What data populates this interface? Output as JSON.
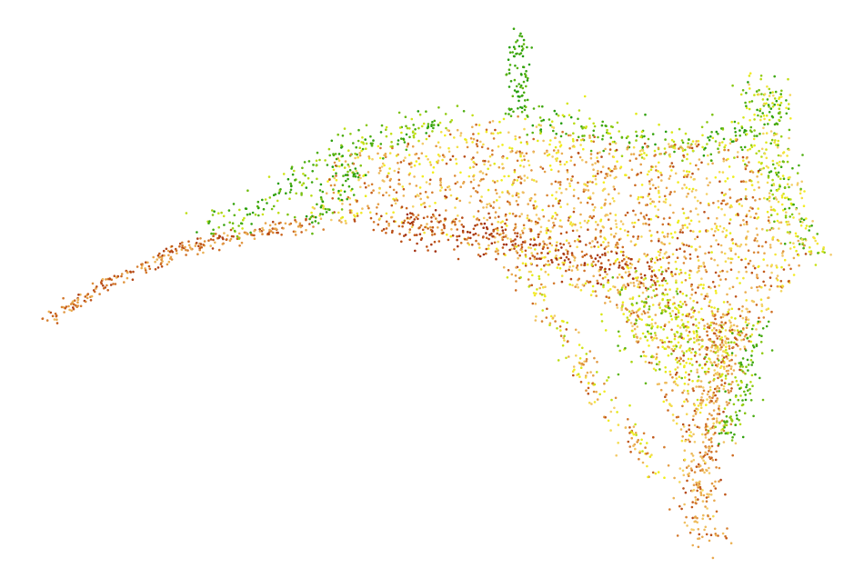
{
  "chart_data": {
    "type": "scatter",
    "title": "",
    "xlabel": "",
    "ylabel": "",
    "axes_visible": false,
    "grid": false,
    "legend": "none",
    "xlim": [
      0,
      1
    ],
    "ylim": [
      0,
      1
    ],
    "colormap": [
      "#9c2a12",
      "#c8611c",
      "#e8a64c",
      "#f4cf6e",
      "#f3f01a",
      "#b9dc14",
      "#4cad10",
      "#1f9a0c"
    ],
    "color_value_range": [
      0,
      1
    ],
    "point_groups": [
      {
        "name": "tail",
        "polyline": [
          [
            0.055,
            0.448
          ],
          [
            0.13,
            0.515
          ],
          [
            0.22,
            0.575
          ],
          [
            0.3,
            0.6
          ],
          [
            0.36,
            0.61
          ]
        ],
        "spread": 0.006,
        "color_range": [
          0.05,
          0.35
        ],
        "count": 260
      },
      {
        "name": "upper-left-edge",
        "polyline": [
          [
            0.245,
            0.605
          ],
          [
            0.33,
            0.66
          ],
          [
            0.39,
            0.74
          ],
          [
            0.46,
            0.765
          ],
          [
            0.53,
            0.8
          ]
        ],
        "spread": 0.014,
        "color_range": [
          0.65,
          0.98
        ],
        "count": 220
      },
      {
        "name": "top-spike",
        "polyline": [
          [
            0.6,
            0.8
          ],
          [
            0.602,
            0.88
          ],
          [
            0.6,
            0.94
          ]
        ],
        "spread": 0.007,
        "color_range": [
          0.82,
          1.0
        ],
        "count": 80
      },
      {
        "name": "upper-right-edge",
        "polyline": [
          [
            0.62,
            0.8
          ],
          [
            0.72,
            0.76
          ],
          [
            0.8,
            0.75
          ],
          [
            0.86,
            0.76
          ],
          [
            0.89,
            0.86
          ]
        ],
        "spread": 0.016,
        "color_range": [
          0.6,
          1.0
        ],
        "count": 240
      },
      {
        "name": "right-edge",
        "polyline": [
          [
            0.885,
            0.85
          ],
          [
            0.895,
            0.7
          ],
          [
            0.915,
            0.62
          ],
          [
            0.945,
            0.56
          ]
        ],
        "spread": 0.014,
        "color_range": [
          0.4,
          0.95
        ],
        "count": 260
      },
      {
        "name": "main-body",
        "polygon": [
          [
            0.35,
            0.62
          ],
          [
            0.39,
            0.73
          ],
          [
            0.53,
            0.78
          ],
          [
            0.6,
            0.8
          ],
          [
            0.72,
            0.75
          ],
          [
            0.86,
            0.76
          ],
          [
            0.9,
            0.64
          ],
          [
            0.94,
            0.56
          ],
          [
            0.88,
            0.43
          ],
          [
            0.82,
            0.3
          ],
          [
            0.8,
            0.2
          ],
          [
            0.72,
            0.46
          ],
          [
            0.6,
            0.55
          ],
          [
            0.52,
            0.58
          ],
          [
            0.42,
            0.61
          ]
        ],
        "color_range": [
          0.08,
          0.62
        ],
        "count": 2000
      },
      {
        "name": "dark-band",
        "polyline": [
          [
            0.44,
            0.61
          ],
          [
            0.52,
            0.6
          ],
          [
            0.6,
            0.575
          ],
          [
            0.7,
            0.55
          ],
          [
            0.77,
            0.53
          ]
        ],
        "spread": 0.018,
        "color_range": [
          0.0,
          0.18
        ],
        "count": 280
      },
      {
        "name": "right-inner-green",
        "polyline": [
          [
            0.74,
            0.5
          ],
          [
            0.79,
            0.43
          ],
          [
            0.82,
            0.35
          ]
        ],
        "spread": 0.03,
        "color_range": [
          0.55,
          0.85
        ],
        "count": 240
      },
      {
        "name": "bottom-spike",
        "polyline": [
          [
            0.84,
            0.46
          ],
          [
            0.83,
            0.33
          ],
          [
            0.815,
            0.2
          ],
          [
            0.81,
            0.1
          ],
          [
            0.822,
            0.06
          ]
        ],
        "spread": 0.013,
        "color_range": [
          0.08,
          0.48
        ],
        "count": 360
      },
      {
        "name": "bottom-spike-green",
        "polyline": [
          [
            0.88,
            0.44
          ],
          [
            0.86,
            0.33
          ],
          [
            0.84,
            0.24
          ]
        ],
        "spread": 0.01,
        "color_range": [
          0.7,
          0.95
        ],
        "count": 110
      },
      {
        "name": "lower-branch",
        "polyline": [
          [
            0.6,
            0.55
          ],
          [
            0.66,
            0.4
          ],
          [
            0.71,
            0.28
          ],
          [
            0.77,
            0.18
          ]
        ],
        "spread": 0.01,
        "color_range": [
          0.1,
          0.75
        ],
        "count": 190
      },
      {
        "name": "left-edge-green-patches",
        "polyline": [
          [
            0.39,
            0.73
          ],
          [
            0.41,
            0.7
          ],
          [
            0.36,
            0.61
          ]
        ],
        "spread": 0.01,
        "color_range": [
          0.78,
          1.0
        ],
        "count": 60
      }
    ]
  }
}
